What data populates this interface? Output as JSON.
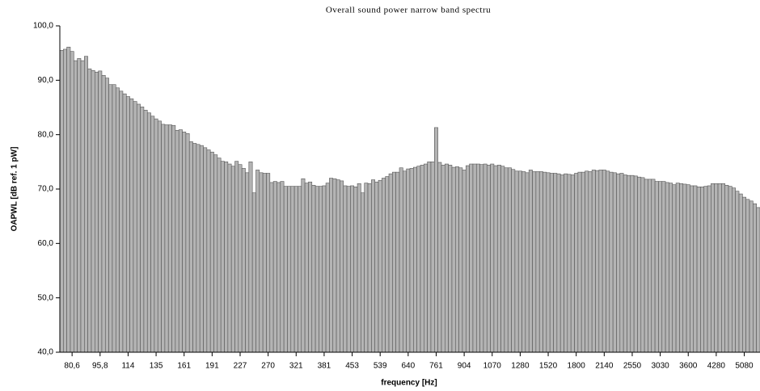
{
  "chart_data": {
    "type": "bar",
    "title": "Overall sound power narrow band spectru",
    "x_label": "frequency [Hz]",
    "y_label": "OAPWL [dB ref. 1 pW]",
    "color": "#b4b4b4",
    "ylim": [
      40,
      100
    ],
    "yticks": [
      {
        "value": 40,
        "label": "40,0"
      },
      {
        "value": 50,
        "label": "50,0"
      },
      {
        "value": 60,
        "label": "60,0"
      },
      {
        "value": 70,
        "label": "70,0"
      },
      {
        "value": 80,
        "label": "80,0"
      },
      {
        "value": 90,
        "label": "90,0"
      },
      {
        "value": 100,
        "label": "100,0"
      }
    ],
    "categories": [
      null,
      null,
      null,
      "80,6",
      null,
      null,
      null,
      null,
      null,
      null,
      null,
      "95,8",
      null,
      null,
      null,
      null,
      null,
      null,
      null,
      "114",
      null,
      null,
      null,
      null,
      null,
      null,
      null,
      "135",
      null,
      null,
      null,
      null,
      null,
      null,
      null,
      "161",
      null,
      null,
      null,
      null,
      null,
      null,
      null,
      "191",
      null,
      null,
      null,
      null,
      null,
      null,
      null,
      "227",
      null,
      null,
      null,
      null,
      null,
      null,
      null,
      "270",
      null,
      null,
      null,
      null,
      null,
      null,
      null,
      "321",
      null,
      null,
      null,
      null,
      null,
      null,
      null,
      "381",
      null,
      null,
      null,
      null,
      null,
      null,
      null,
      "453",
      null,
      null,
      null,
      null,
      null,
      null,
      null,
      "539",
      null,
      null,
      null,
      null,
      null,
      null,
      null,
      "640",
      null,
      null,
      null,
      null,
      null,
      null,
      null,
      "761",
      null,
      null,
      null,
      null,
      null,
      null,
      null,
      "904",
      null,
      null,
      null,
      null,
      null,
      null,
      null,
      "1070",
      null,
      null,
      null,
      null,
      null,
      null,
      null,
      "1280",
      null,
      null,
      null,
      null,
      null,
      null,
      null,
      "1520",
      null,
      null,
      null,
      null,
      null,
      null,
      null,
      "1800",
      null,
      null,
      null,
      null,
      null,
      null,
      null,
      "2140",
      null,
      null,
      null,
      null,
      null,
      null,
      null,
      "2550",
      null,
      null,
      null,
      null,
      null,
      null,
      null,
      "3030",
      null,
      null,
      null,
      null,
      null,
      null,
      null,
      "3600",
      null,
      null,
      null,
      null,
      null,
      null,
      null,
      "4280",
      null,
      null,
      null,
      null,
      null,
      null,
      null,
      "5080",
      null,
      null,
      null,
      null
    ],
    "values": [
      95.5,
      95.7,
      96.1,
      95.3,
      93.6,
      94.0,
      93.6,
      94.4,
      92.1,
      91.8,
      91.5,
      91.7,
      90.9,
      90.4,
      89.2,
      89.2,
      88.6,
      88.0,
      87.5,
      87.0,
      86.6,
      86.1,
      85.6,
      85.1,
      84.5,
      84.0,
      83.4,
      82.9,
      82.5,
      81.9,
      81.8,
      81.8,
      81.7,
      80.8,
      80.9,
      80.5,
      80.2,
      78.7,
      78.4,
      78.2,
      78.0,
      77.6,
      77.2,
      76.8,
      76.3,
      75.7,
      75.1,
      75.0,
      74.6,
      74.2,
      75.1,
      74.5,
      73.8,
      73.0,
      75.0,
      69.3,
      73.5,
      73.0,
      72.9,
      72.9,
      71.2,
      71.4,
      71.2,
      71.4,
      70.5,
      70.5,
      70.5,
      70.5,
      70.5,
      71.9,
      71.1,
      71.3,
      70.7,
      70.5,
      70.5,
      70.6,
      71.1,
      72.0,
      71.9,
      71.7,
      71.5,
      70.6,
      70.5,
      70.6,
      70.4,
      71.0,
      69.3,
      71.1,
      71.0,
      71.7,
      71.3,
      71.6,
      72.0,
      72.3,
      72.8,
      73.1,
      73.1,
      73.9,
      73.3,
      73.7,
      73.8,
      74.0,
      74.2,
      74.4,
      74.6,
      75.0,
      75.0,
      81.3,
      74.9,
      74.4,
      74.6,
      74.4,
      74.0,
      74.1,
      73.9,
      73.5,
      74.3,
      74.6,
      74.6,
      74.6,
      74.5,
      74.6,
      74.4,
      74.6,
      74.3,
      74.4,
      74.2,
      73.9,
      73.9,
      73.6,
      73.3,
      73.3,
      73.2,
      73.0,
      73.5,
      73.2,
      73.2,
      73.2,
      73.1,
      73.0,
      72.9,
      72.9,
      72.8,
      72.6,
      72.8,
      72.7,
      72.6,
      72.9,
      73.1,
      73.1,
      73.3,
      73.2,
      73.5,
      73.4,
      73.5,
      73.5,
      73.3,
      73.1,
      73.0,
      72.8,
      72.9,
      72.6,
      72.5,
      72.5,
      72.4,
      72.2,
      72.1,
      71.8,
      71.8,
      71.8,
      71.4,
      71.4,
      71.4,
      71.2,
      71.1,
      70.8,
      71.1,
      71.0,
      70.9,
      70.8,
      70.6,
      70.6,
      70.4,
      70.4,
      70.5,
      70.6,
      71.0,
      71.0,
      71.0,
      71.0,
      70.7,
      70.5,
      70.2,
      69.6,
      69.1,
      68.5,
      68.1,
      67.8,
      67.3,
      66.6
    ]
  }
}
